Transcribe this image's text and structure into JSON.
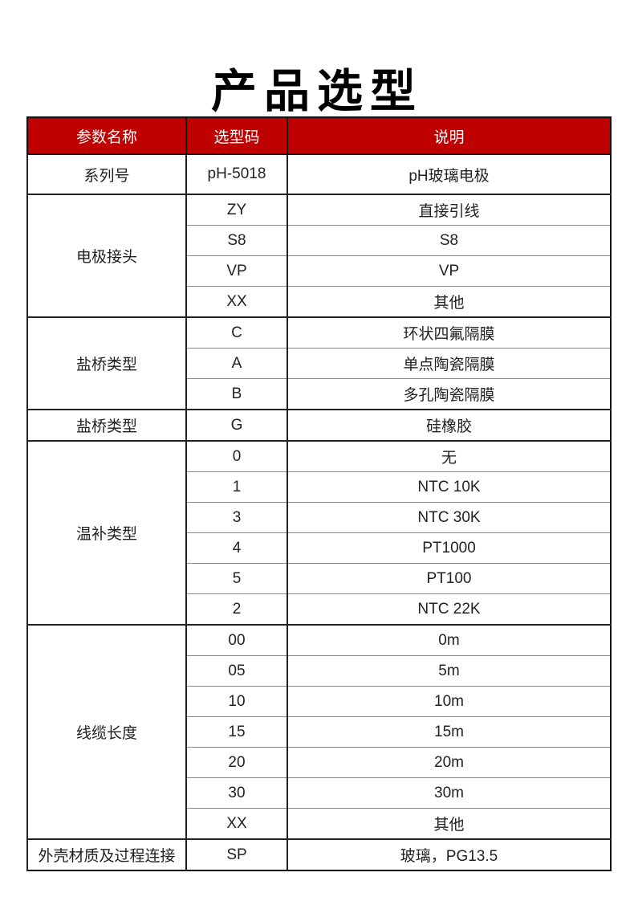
{
  "title": "产品选型",
  "colors": {
    "header_bg": "#c00000",
    "header_text": "#ffffff",
    "border_dark": "#222222",
    "border_light": "#8a8a8a",
    "body_text": "#222222"
  },
  "table": {
    "headers": [
      "参数名称",
      "选型码",
      "说明"
    ],
    "sections": [
      {
        "param": "系列号",
        "rows": [
          {
            "code": "pH-5018",
            "desc": "pH玻璃电极"
          }
        ]
      },
      {
        "param": "电极接头",
        "rows": [
          {
            "code": "ZY",
            "desc": "直接引线"
          },
          {
            "code": "S8",
            "desc": "S8"
          },
          {
            "code": "VP",
            "desc": "VP"
          },
          {
            "code": "XX",
            "desc": "其他"
          }
        ]
      },
      {
        "param": "盐桥类型",
        "rows": [
          {
            "code": "C",
            "desc": "环状四氟隔膜"
          },
          {
            "code": "A",
            "desc": "单点陶瓷隔膜"
          },
          {
            "code": "B",
            "desc": "多孔陶瓷隔膜"
          }
        ]
      },
      {
        "param": "盐桥类型",
        "rows": [
          {
            "code": "G",
            "desc": "硅橡胶"
          }
        ]
      },
      {
        "param": "温补类型",
        "rows": [
          {
            "code": "0",
            "desc": "无"
          },
          {
            "code": "1",
            "desc": "NTC 10K"
          },
          {
            "code": "3",
            "desc": "NTC 30K"
          },
          {
            "code": "4",
            "desc": "PT1000"
          },
          {
            "code": "5",
            "desc": "PT100"
          },
          {
            "code": "2",
            "desc": "NTC 22K"
          }
        ]
      },
      {
        "param": "线缆长度",
        "rows": [
          {
            "code": "00",
            "desc": "0m"
          },
          {
            "code": "05",
            "desc": "5m"
          },
          {
            "code": "10",
            "desc": "10m"
          },
          {
            "code": "15",
            "desc": "15m"
          },
          {
            "code": "20",
            "desc": "20m"
          },
          {
            "code": "30",
            "desc": "30m"
          },
          {
            "code": "XX",
            "desc": "其他"
          }
        ]
      },
      {
        "param": "外壳材质及过程连接",
        "rows": [
          {
            "code": "SP",
            "desc": "玻璃，PG13.5"
          }
        ]
      }
    ]
  }
}
